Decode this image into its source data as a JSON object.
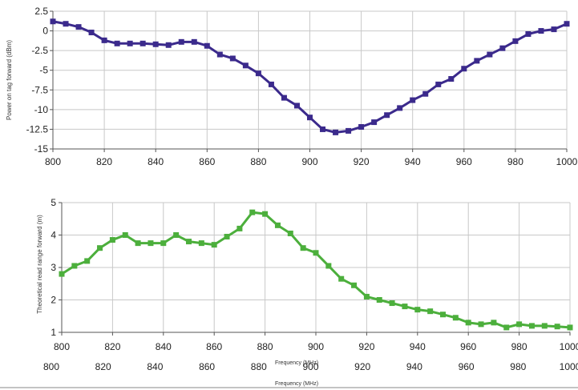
{
  "chart_data": [
    {
      "type": "line",
      "ylabel": "Power on tag forward (dBm)",
      "xlim": [
        800,
        1000
      ],
      "ylim": [
        -15,
        2.5
      ],
      "xticks": [
        800,
        820,
        840,
        860,
        880,
        900,
        920,
        940,
        960,
        980,
        1000
      ],
      "yticks": [
        2.5,
        0,
        -2.5,
        -5,
        -7.5,
        -10,
        -12.5,
        -15
      ],
      "ytick_labels": [
        "2.5",
        "0",
        "-2.5",
        "-5",
        "-7.5",
        "-10",
        "-12.5",
        "-15"
      ],
      "grid": true,
      "marker": "square",
      "color": "#3b2a8c",
      "x": [
        800,
        805,
        810,
        815,
        820,
        825,
        830,
        835,
        840,
        845,
        850,
        855,
        860,
        865,
        870,
        875,
        880,
        885,
        890,
        895,
        900,
        905,
        910,
        915,
        920,
        925,
        930,
        935,
        940,
        945,
        950,
        955,
        960,
        965,
        970,
        975,
        980,
        985,
        990,
        995,
        1000
      ],
      "y": [
        1.2,
        0.9,
        0.5,
        -0.2,
        -1.2,
        -1.6,
        -1.6,
        -1.6,
        -1.7,
        -1.8,
        -1.4,
        -1.4,
        -1.9,
        -3.0,
        -3.5,
        -4.4,
        -5.4,
        -6.8,
        -8.5,
        -9.5,
        -11.0,
        -12.5,
        -12.9,
        -12.7,
        -12.2,
        -11.6,
        -10.7,
        -9.8,
        -8.8,
        -8.0,
        -6.8,
        -6.1,
        -4.8,
        -3.8,
        -3.0,
        -2.2,
        -1.3,
        -0.4,
        0.0,
        0.2,
        0.9
      ]
    },
    {
      "type": "line",
      "xlabel": "Frequency (MHz)",
      "ylabel": "Theoretical read range forward (m)",
      "xlim": [
        800,
        1000
      ],
      "ylim": [
        1,
        5
      ],
      "xticks": [
        800,
        820,
        840,
        860,
        880,
        900,
        920,
        940,
        960,
        980,
        1000
      ],
      "yticks": [
        1,
        2,
        3,
        4,
        5
      ],
      "grid": true,
      "marker": "square",
      "color": "#4caf3c",
      "x": [
        800,
        805,
        810,
        815,
        820,
        825,
        830,
        835,
        840,
        845,
        850,
        855,
        860,
        865,
        870,
        875,
        880,
        885,
        890,
        895,
        900,
        905,
        910,
        915,
        920,
        925,
        930,
        935,
        940,
        945,
        950,
        955,
        960,
        965,
        970,
        975,
        980,
        985,
        990,
        995,
        1000
      ],
      "y": [
        2.8,
        3.05,
        3.2,
        3.6,
        3.85,
        4.0,
        3.75,
        3.75,
        3.75,
        4.0,
        3.8,
        3.75,
        3.7,
        3.95,
        4.2,
        4.7,
        4.65,
        4.3,
        4.05,
        3.6,
        3.45,
        3.05,
        2.65,
        2.45,
        2.1,
        2.0,
        1.9,
        1.8,
        1.7,
        1.65,
        1.55,
        1.45,
        1.3,
        1.25,
        1.3,
        1.15,
        1.25,
        1.2,
        1.2,
        1.18,
        1.15
      ]
    }
  ],
  "bottom_axis": {
    "ticks": [
      800,
      820,
      840,
      860,
      880,
      900,
      920,
      940,
      960,
      980,
      1000
    ],
    "label": "Frequency (MHz)"
  }
}
